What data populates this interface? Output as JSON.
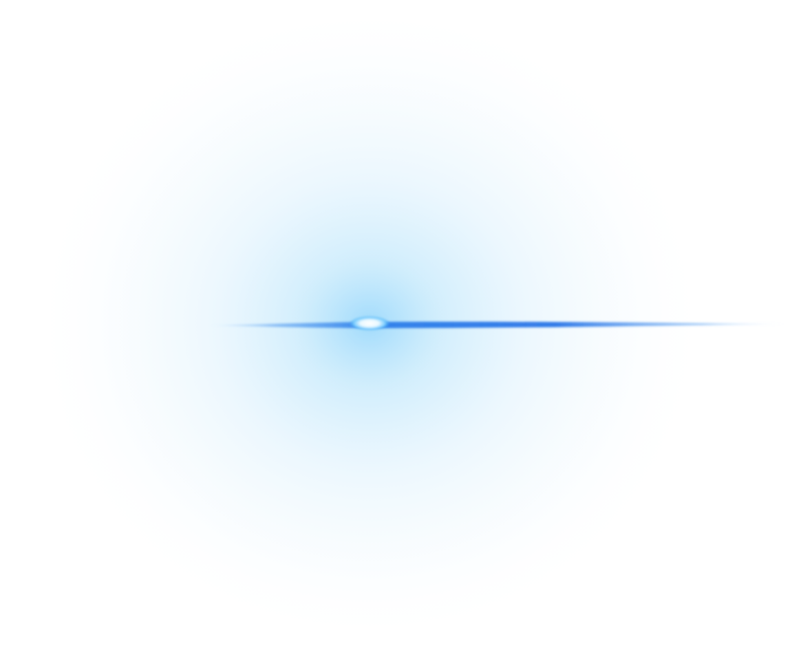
{
  "scene": {
    "description_visible_text": "",
    "colors": {
      "background": "#ffffff",
      "halo_core": "#bfe6fb",
      "halo_mid": "#e3f4fd",
      "streak_core": "#1f6fe6",
      "streak_edge": "#8fc3ff",
      "flare_center": "#ffffff",
      "flare_ring": "#6cc8ff"
    }
  }
}
